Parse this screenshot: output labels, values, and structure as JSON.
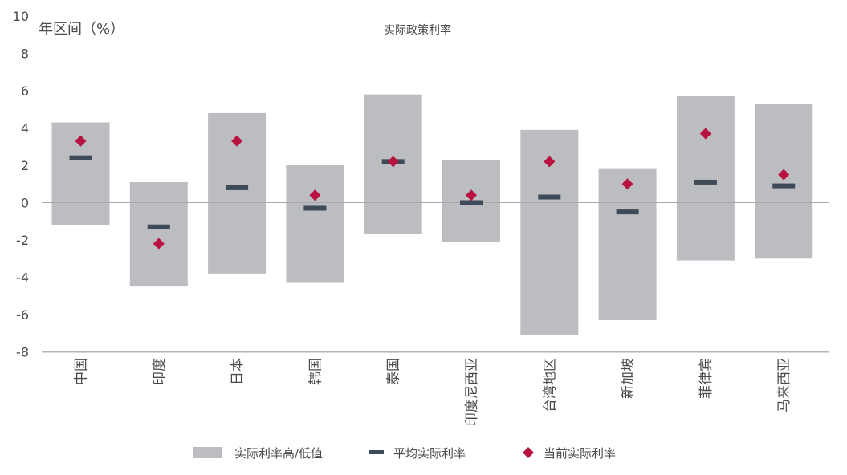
{
  "chart_data": {
    "type": "bar",
    "title": "实际政策利率",
    "ylabel": "年区间（%）",
    "xlabel": "",
    "ylim": [
      -8,
      10
    ],
    "yticks": [
      -8,
      -6,
      -4,
      -2,
      0,
      2,
      4,
      6,
      8,
      10
    ],
    "grid": false,
    "legend_position": "bottom",
    "categories": [
      "中国",
      "印度",
      "日本",
      "韩国",
      "泰国",
      "印度尼西亚",
      "台湾地区",
      "新加坡",
      "菲律宾",
      "马来西亚"
    ],
    "series": [
      {
        "name": "实际利率高/低值",
        "kind": "range",
        "high": [
          4.3,
          1.1,
          4.8,
          2.0,
          5.8,
          2.3,
          3.9,
          1.8,
          5.7,
          5.3
        ],
        "low": [
          -1.2,
          -4.5,
          -3.8,
          -4.3,
          -1.7,
          -2.1,
          -7.1,
          -6.3,
          -3.1,
          -3.0
        ]
      },
      {
        "name": "平均实际利率",
        "kind": "dash",
        "values": [
          2.4,
          -1.3,
          0.8,
          -0.3,
          2.2,
          0.0,
          0.3,
          -0.5,
          1.1,
          0.9
        ]
      },
      {
        "name": "当前实际利率",
        "kind": "marker",
        "values": [
          3.3,
          -2.2,
          3.3,
          0.4,
          2.2,
          0.4,
          2.2,
          1.0,
          3.7,
          1.5
        ]
      }
    ],
    "colors": {
      "range": "#bcbdc0",
      "dash": "#3d4a57",
      "marker": "#b8123e",
      "axis": "#a9a9a9",
      "text": "#4a4a4a"
    }
  }
}
